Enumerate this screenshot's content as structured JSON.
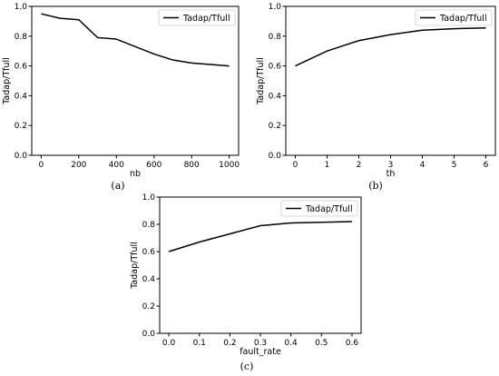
{
  "chart_data": [
    {
      "type": "line",
      "panel": "(a)",
      "xlabel": "nb",
      "ylabel": "Tadap/Tfull",
      "xlim": [
        -50,
        1050
      ],
      "ylim": [
        0.0,
        1.0
      ],
      "xticks": [
        0,
        200,
        400,
        600,
        800,
        1000
      ],
      "yticks": [
        0.0,
        0.2,
        0.4,
        0.6,
        0.8,
        1.0
      ],
      "legend": "upper right",
      "series": [
        {
          "name": "Tadap/Tfull",
          "x": [
            0,
            100,
            200,
            300,
            400,
            500,
            600,
            700,
            800,
            900,
            1000
          ],
          "y": [
            0.95,
            0.92,
            0.91,
            0.79,
            0.78,
            0.73,
            0.68,
            0.64,
            0.62,
            0.61,
            0.6
          ]
        }
      ]
    },
    {
      "type": "line",
      "panel": "(b)",
      "xlabel": "th",
      "ylabel": "Tadap/Tfull",
      "xlim": [
        -0.3,
        6.3
      ],
      "ylim": [
        0.0,
        1.0
      ],
      "xticks": [
        0,
        1,
        2,
        3,
        4,
        5,
        6
      ],
      "yticks": [
        0.0,
        0.2,
        0.4,
        0.6,
        0.8,
        1.0
      ],
      "legend": "upper right",
      "series": [
        {
          "name": "Tadap/Tfull",
          "x": [
            0,
            1,
            2,
            3,
            4,
            5,
            6
          ],
          "y": [
            0.6,
            0.7,
            0.77,
            0.81,
            0.84,
            0.85,
            0.855
          ]
        }
      ]
    },
    {
      "type": "line",
      "panel": "(c)",
      "xlabel": "fault_rate",
      "ylabel": "Tadap/Tfull",
      "xlim": [
        -0.03,
        0.63
      ],
      "ylim": [
        0.0,
        1.0
      ],
      "xticks": [
        0.0,
        0.1,
        0.2,
        0.3,
        0.4,
        0.5,
        0.6
      ],
      "yticks": [
        0.0,
        0.2,
        0.4,
        0.6,
        0.8,
        1.0
      ],
      "legend": "upper right",
      "series": [
        {
          "name": "Tadap/Tfull",
          "x": [
            0.0,
            0.1,
            0.2,
            0.3,
            0.4,
            0.5,
            0.6
          ],
          "y": [
            0.6,
            0.67,
            0.73,
            0.79,
            0.81,
            0.815,
            0.82
          ]
        }
      ]
    }
  ]
}
